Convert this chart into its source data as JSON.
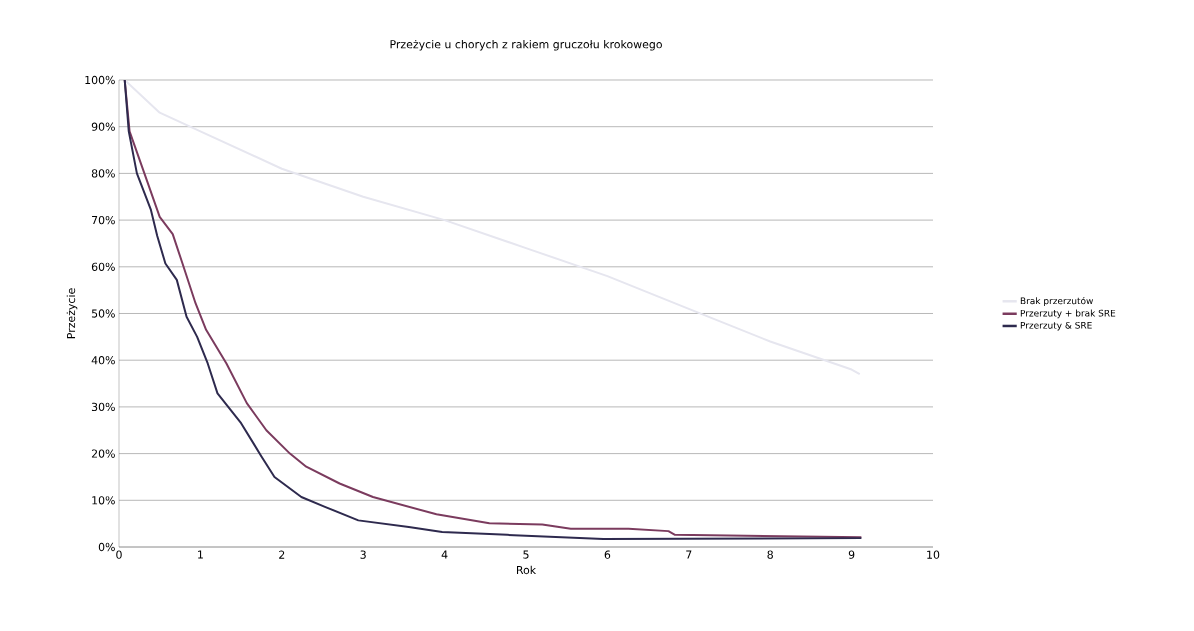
{
  "chart_data": {
    "type": "line",
    "title": "Przeżycie u chorych z rakiem gruczołu krokowego",
    "xlabel": "Rok",
    "ylabel": "Przeżycie",
    "series": [
      {
        "name": "Brak przerzutów",
        "color": "#e6e6ef",
        "x": [
          0.07,
          0.5,
          1,
          1.5,
          2,
          3,
          4,
          5,
          6,
          7,
          8,
          9,
          9.1
        ],
        "values": [
          100,
          93,
          89,
          85,
          81,
          75,
          70,
          64,
          58,
          51,
          44,
          38,
          37
        ]
      },
      {
        "name": "Przerzuty + brak SRE",
        "color": "#7b3b5e",
        "x": [
          0.07,
          0.13,
          0.34,
          0.5,
          0.66,
          0.78,
          0.94,
          1.07,
          1.32,
          1.57,
          1.81,
          2.1,
          2.3,
          2.71,
          3.12,
          3.9,
          4.55,
          5.2,
          5.55,
          6.26,
          6.75,
          6.83,
          9.12
        ],
        "values": [
          100,
          89,
          78.6,
          70.7,
          67,
          60.7,
          52.2,
          46.5,
          39.3,
          30.8,
          25,
          20,
          17.2,
          13.6,
          10.7,
          7,
          5.1,
          4.8,
          3.9,
          3.9,
          3.4,
          2.6,
          2.1
        ]
      },
      {
        "name": "Przerzuty & SRE",
        "color": "#2e2a4e",
        "x": [
          0.07,
          0.12,
          0.22,
          0.39,
          0.47,
          0.57,
          0.71,
          0.83,
          0.96,
          1.09,
          1.21,
          1.5,
          1.75,
          1.91,
          2.24,
          2.53,
          2.94,
          3.56,
          3.97,
          4.77,
          5.95,
          9.12
        ],
        "values": [
          100,
          89,
          80,
          72.3,
          66.6,
          60.7,
          57.2,
          49.3,
          45,
          39.3,
          32.9,
          26.5,
          19.4,
          15,
          10.7,
          8.6,
          5.7,
          4.3,
          3.2,
          2.6,
          1.7,
          1.9
        ]
      }
    ],
    "xlim": [
      0,
      10
    ],
    "xticks": [
      0,
      1,
      2,
      3,
      4,
      5,
      6,
      7,
      8,
      9,
      10
    ],
    "ylim": [
      0,
      100
    ],
    "yticks": [
      {
        "value": 0,
        "label": "0%"
      },
      {
        "value": 10,
        "label": "10%"
      },
      {
        "value": 20,
        "label": "20%"
      },
      {
        "value": 30,
        "label": "30%"
      },
      {
        "value": 40,
        "label": "40%"
      },
      {
        "value": 50,
        "label": "50%"
      },
      {
        "value": 60,
        "label": "60%"
      },
      {
        "value": 70,
        "label": "70%"
      },
      {
        "value": 80,
        "label": "80%"
      },
      {
        "value": 90,
        "label": "90%"
      },
      {
        "value": 100,
        "label": "100%"
      }
    ],
    "grid": "y",
    "legend": "right",
    "marker": "none",
    "line_style": "solid"
  }
}
